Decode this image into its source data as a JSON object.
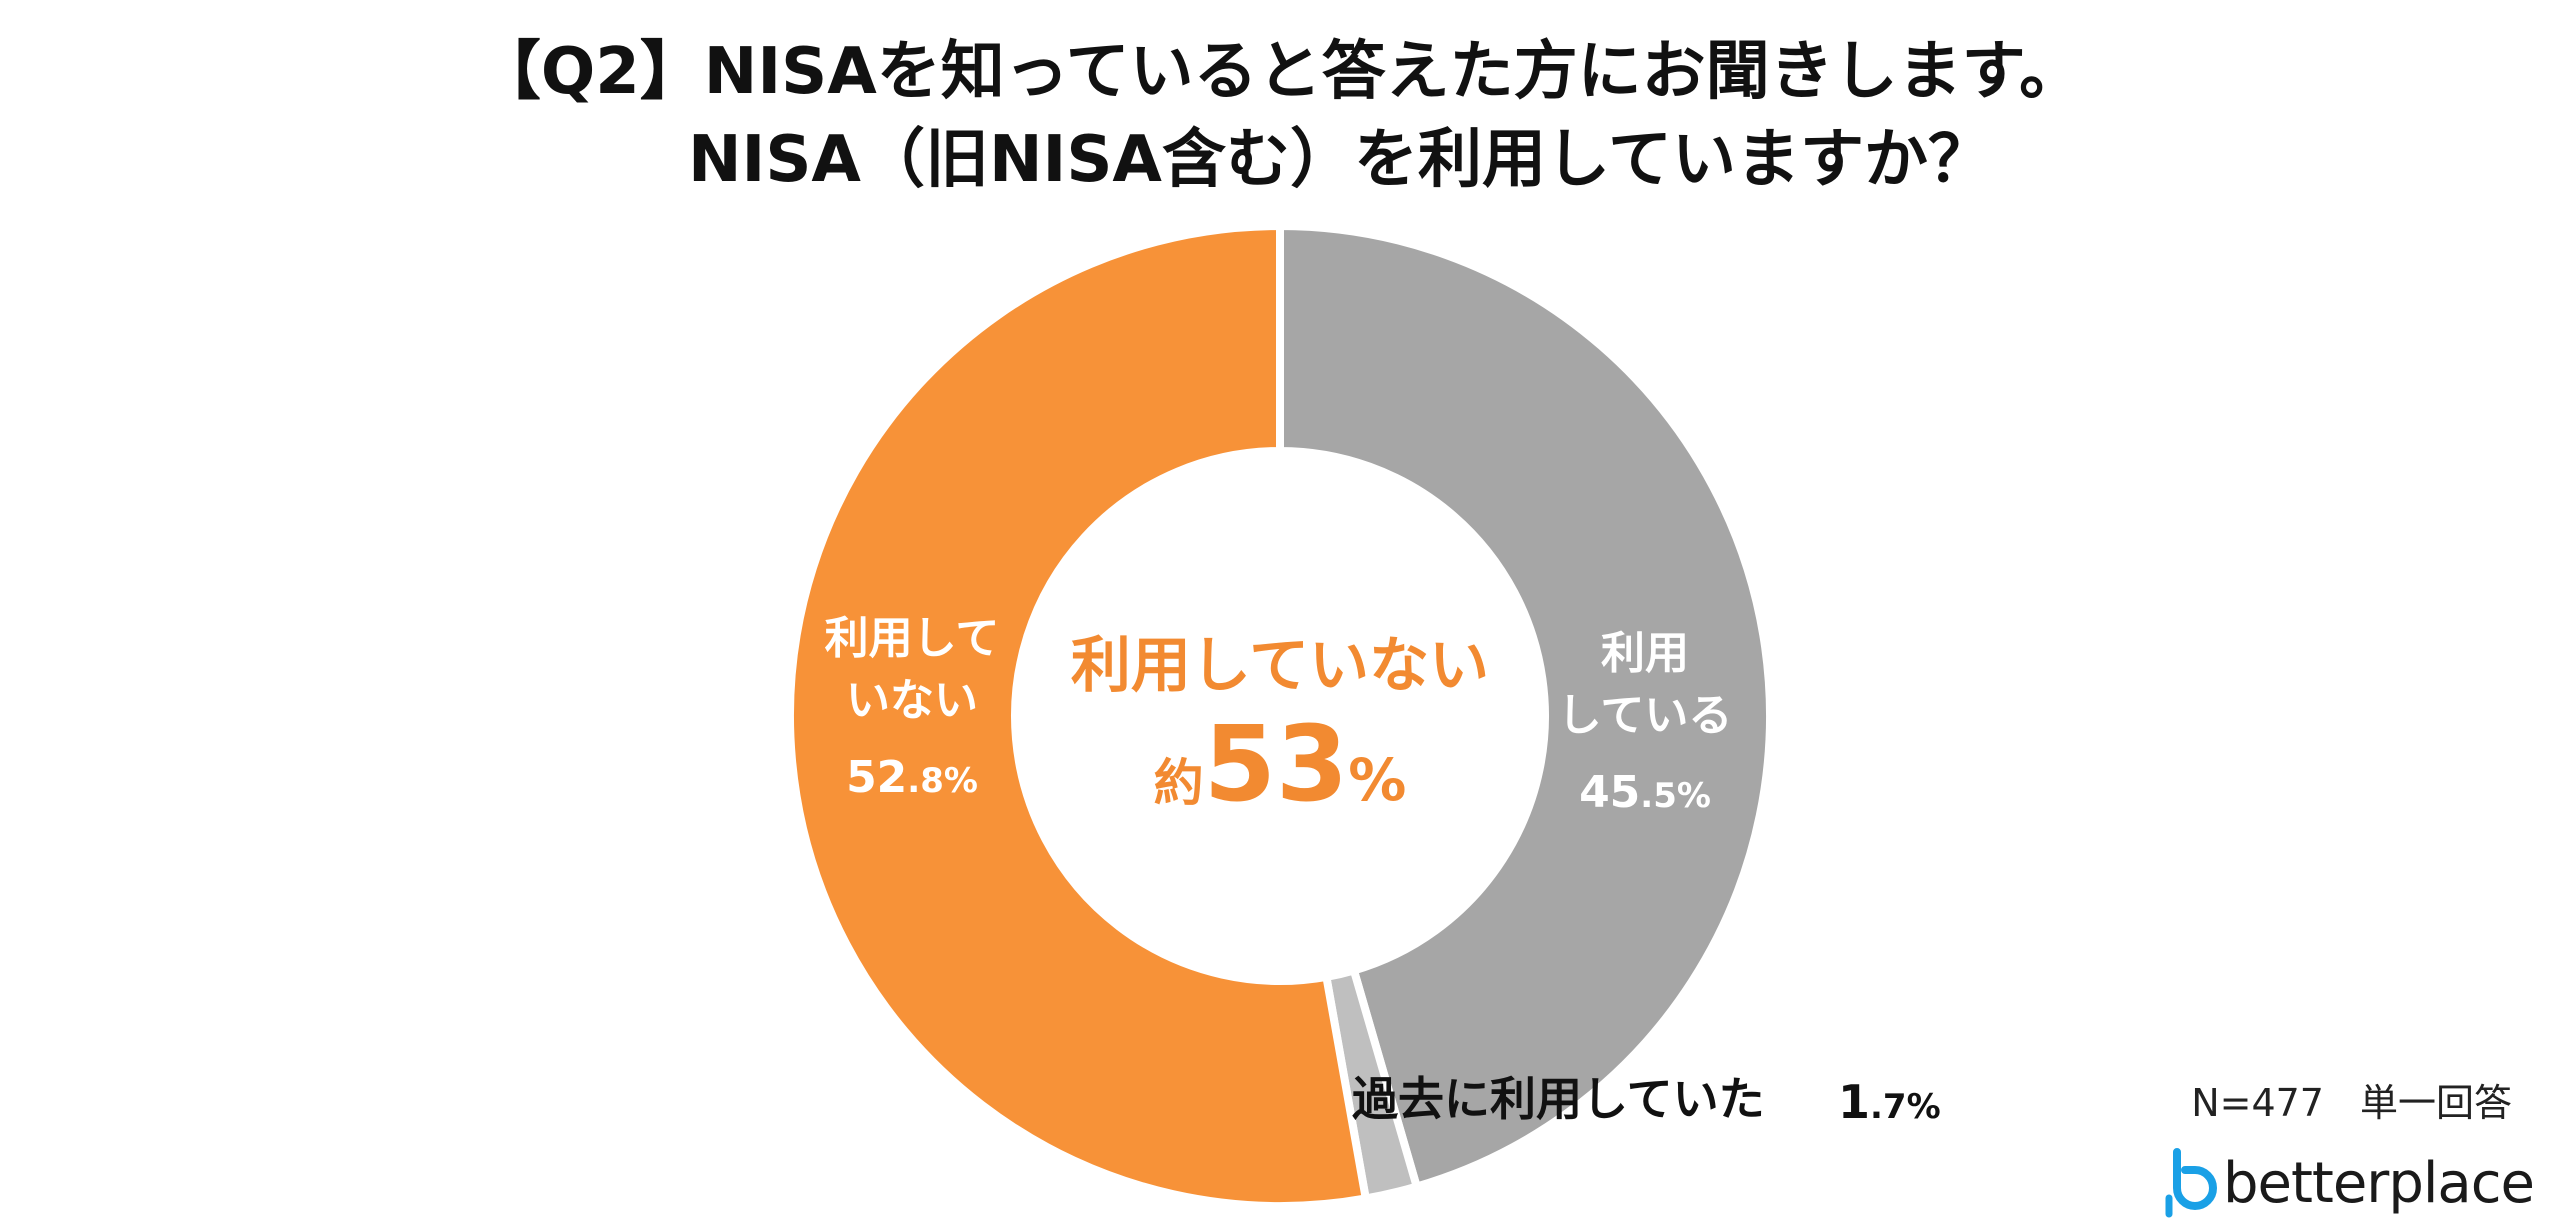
{
  "title": {
    "line1": "【Q2】NISAを知っていると答えた方にお聞きします。",
    "line2": "NISA（旧NISA含む）を利用していますか？"
  },
  "chart_data": {
    "type": "pie",
    "donut": true,
    "unit": "%",
    "slices": [
      {
        "label": "利用している",
        "value": 45.5,
        "value_int": "45",
        "value_dec": ".5%",
        "color": "#a6a6a6"
      },
      {
        "label": "過去に利用していた",
        "value": 1.7,
        "value_int": "1",
        "value_dec": ".7%",
        "color": "#bfbfbf"
      },
      {
        "label": "利用していない",
        "value": 52.8,
        "value_int": "52",
        "value_dec": ".8%",
        "color": "#f79238"
      }
    ],
    "center": {
      "line1": "利用していない",
      "prefix": "約",
      "number": "53",
      "suffix": "%",
      "color": "#f28a31"
    }
  },
  "meta": {
    "sample": "N=477",
    "answer_type": "単一回答"
  },
  "logo": {
    "text": "betterplace",
    "color": "#1aa0e6"
  }
}
